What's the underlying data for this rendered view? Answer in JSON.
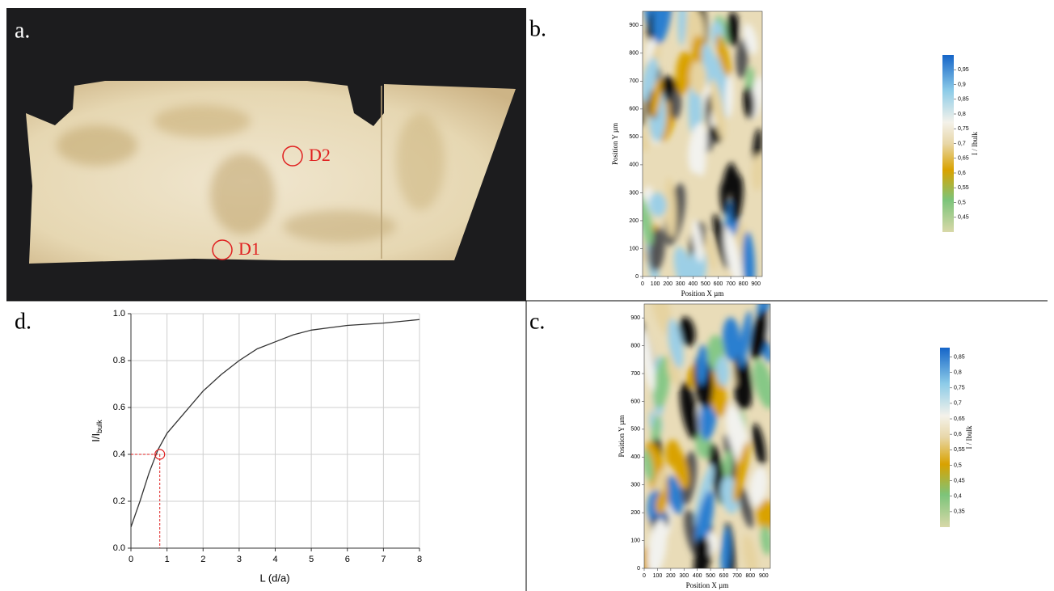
{
  "photo": {
    "label": "a.",
    "spots": [
      "D1",
      "D2"
    ]
  },
  "maps": [
    {
      "label": "b.",
      "xlabel": "Position X µm",
      "ylabel": "Position Y µm",
      "xlim": [
        0,
        950
      ],
      "ylim": [
        0,
        950
      ],
      "xticks": [
        0,
        100,
        200,
        300,
        400,
        500,
        600,
        700,
        800,
        900
      ],
      "yticks": [
        0,
        100,
        200,
        300,
        400,
        500,
        600,
        700,
        800,
        900
      ],
      "colorbar": {
        "label": "I / Ibulk",
        "lim": [
          0.4,
          1.0
        ],
        "ticks": [
          {
            "value": 0.95,
            "label": "0,95"
          },
          {
            "value": 0.9,
            "label": "0,9"
          },
          {
            "value": 0.85,
            "label": "0,85"
          },
          {
            "value": 0.8,
            "label": "0,8"
          },
          {
            "value": 0.75,
            "label": "0,75"
          },
          {
            "value": 0.7,
            "label": "0,7"
          },
          {
            "value": 0.65,
            "label": "0,65"
          },
          {
            "value": 0.6,
            "label": "0,6"
          },
          {
            "value": 0.55,
            "label": "0,55"
          },
          {
            "value": 0.5,
            "label": "0,5"
          },
          {
            "value": 0.45,
            "label": "0,45"
          }
        ]
      }
    },
    {
      "label": "c.",
      "xlabel": "Position X µm",
      "ylabel": "Position Y µm",
      "xlim": [
        0,
        950
      ],
      "ylim": [
        0,
        950
      ],
      "xticks": [
        0,
        100,
        200,
        300,
        400,
        500,
        600,
        700,
        800,
        900
      ],
      "yticks": [
        0,
        100,
        200,
        300,
        400,
        500,
        600,
        700,
        800,
        900
      ],
      "colorbar": {
        "label": "I / Ibulk",
        "lim": [
          0.3,
          0.88
        ],
        "ticks": [
          {
            "value": 0.85,
            "label": "0,85"
          },
          {
            "value": 0.8,
            "label": "0,8"
          },
          {
            "value": 0.75,
            "label": "0,75"
          },
          {
            "value": 0.7,
            "label": "0,7"
          },
          {
            "value": 0.65,
            "label": "0,65"
          },
          {
            "value": 0.6,
            "label": "0,6"
          },
          {
            "value": 0.55,
            "label": "0,55"
          },
          {
            "value": 0.5,
            "label": "0,5"
          },
          {
            "value": 0.45,
            "label": "0,45"
          },
          {
            "value": 0.4,
            "label": "0,4"
          },
          {
            "value": 0.35,
            "label": "0,35"
          }
        ]
      }
    }
  ],
  "chart_data": {
    "type": "line",
    "label": "d.",
    "xlabel": "L (d/a)",
    "ylabel": "I/I",
    "ylabel_sub": "bulk",
    "x": [
      0,
      0.25,
      0.5,
      0.75,
      1,
      1.5,
      2,
      2.5,
      3,
      3.5,
      4,
      4.5,
      5,
      5.5,
      6,
      7,
      8
    ],
    "values": [
      0.09,
      0.2,
      0.32,
      0.42,
      0.49,
      0.58,
      0.67,
      0.74,
      0.8,
      0.85,
      0.88,
      0.91,
      0.93,
      0.94,
      0.95,
      0.96,
      0.975
    ],
    "color": "#333333",
    "marker": {
      "x": 0.8,
      "y": 0.4,
      "color": "#e02020"
    },
    "xlim": [
      0,
      8
    ],
    "ylim": [
      0,
      1
    ],
    "xticks": [
      0,
      1,
      2,
      3,
      4,
      5,
      6,
      7,
      8
    ],
    "yticks": [
      {
        "value": 0,
        "label": "0.0"
      },
      0.2,
      0.4,
      0.6,
      0.8,
      {
        "value": 1,
        "label": "1.0"
      }
    ],
    "grid": true
  }
}
